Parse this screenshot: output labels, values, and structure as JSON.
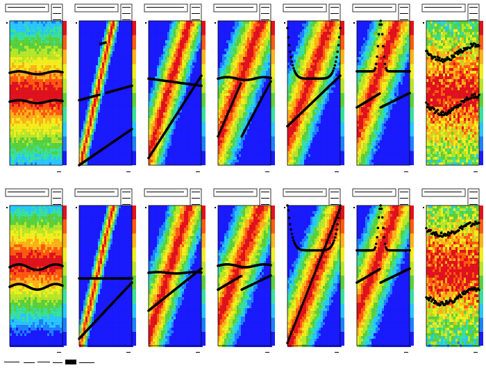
{
  "colors": {
    "colormap": [
      "#1a1aff",
      "#1f7fff",
      "#29c6ff",
      "#38e0a0",
      "#5ad13c",
      "#b8e62a",
      "#f2ee1e",
      "#ffb21a",
      "#ff5a12",
      "#e0121e"
    ],
    "marker": "#000000",
    "frame": "#000000"
  },
  "chart_data": [
    {
      "type": "heatmap",
      "panel": "top-1",
      "curves": [
        {
          "kind": "flat",
          "level": 0.64,
          "wobble": 0.01
        },
        {
          "kind": "flat",
          "level": 0.44,
          "wobble": 0.01
        }
      ],
      "band": {
        "kind": "horizontal",
        "center": 0.5,
        "width": 0.35
      }
    },
    {
      "type": "heatmap",
      "panel": "top-2",
      "curves": [
        {
          "kind": "diag",
          "from": 0.45,
          "to": 0.55,
          "spike": 0.35
        },
        {
          "kind": "diag",
          "from": 0.0,
          "to": 0.25,
          "split": 0.55
        }
      ],
      "band": {
        "kind": "diagonal",
        "offset": 0.0,
        "slope": 1.6,
        "width": 0.12
      }
    },
    {
      "type": "heatmap",
      "panel": "top-3",
      "curves": [
        {
          "kind": "line",
          "from": 0.6,
          "to": 0.55
        },
        {
          "kind": "line",
          "from": 0.05,
          "to": 0.62
        }
      ],
      "band": {
        "kind": "diagonal",
        "offset": 0.1,
        "slope": 1.2,
        "width": 0.25
      }
    },
    {
      "type": "heatmap",
      "panel": "top-4",
      "curves": [
        {
          "kind": "flat",
          "level": 0.6,
          "wobble": 0.01
        },
        {
          "kind": "sawtooth",
          "from": 0.2,
          "to": 0.58,
          "drop": 0.45
        }
      ],
      "band": {
        "kind": "diagonal",
        "offset": 0.2,
        "slope": 1.0,
        "width": 0.3
      }
    },
    {
      "type": "heatmap",
      "panel": "top-5",
      "curves": [
        {
          "kind": "bathtub",
          "level": 0.6
        },
        {
          "kind": "line",
          "from": 0.27,
          "to": 0.62
        }
      ],
      "band": {
        "kind": "diagonal",
        "offset": 0.2,
        "slope": 1.0,
        "width": 0.3
      }
    },
    {
      "type": "heatmap",
      "panel": "top-6",
      "curves": [
        {
          "kind": "peak",
          "level": 0.65,
          "top": 1.0
        },
        {
          "kind": "sawtooth",
          "from": 0.4,
          "to": 0.5,
          "drop": 0.2
        }
      ],
      "band": {
        "kind": "diagonal",
        "offset": 0.25,
        "slope": 1.0,
        "width": 0.3
      }
    },
    {
      "type": "heatmap",
      "panel": "top-7",
      "curves": [
        {
          "kind": "wave",
          "level": 0.78,
          "amp": 0.05
        },
        {
          "kind": "wave",
          "level": 0.42,
          "amp": 0.06
        }
      ],
      "band": {
        "kind": "noise",
        "center": 0.5,
        "width": 0.45
      }
    },
    {
      "type": "heatmap",
      "panel": "bottom-1",
      "curves": [
        {
          "kind": "flat",
          "level": 0.56,
          "wobble": 0.02
        },
        {
          "kind": "flat",
          "level": 0.42,
          "wobble": 0.02
        }
      ],
      "band": {
        "kind": "horizontal",
        "center": 0.4,
        "width": 0.3
      }
    },
    {
      "type": "heatmap",
      "panel": "bottom-2",
      "curves": [
        {
          "kind": "line",
          "from": 0.48,
          "to": 0.48
        },
        {
          "kind": "line",
          "from": 0.05,
          "to": 0.45
        }
      ],
      "band": {
        "kind": "diagonal",
        "offset": 0.0,
        "slope": 1.6,
        "width": 0.12
      }
    },
    {
      "type": "heatmap",
      "panel": "bottom-3",
      "curves": [
        {
          "kind": "flat",
          "level": 0.52,
          "wobble": 0.005
        },
        {
          "kind": "line",
          "from": 0.25,
          "to": 0.55
        }
      ],
      "band": {
        "kind": "diagonal",
        "offset": 0.1,
        "slope": 1.2,
        "width": 0.3
      }
    },
    {
      "type": "heatmap",
      "panel": "bottom-4",
      "curves": [
        {
          "kind": "flat",
          "level": 0.57,
          "wobble": 0.01
        },
        {
          "kind": "sawtooth",
          "from": 0.4,
          "to": 0.5,
          "drop": 0.3
        }
      ],
      "band": {
        "kind": "diagonal",
        "offset": 0.2,
        "slope": 1.0,
        "width": 0.3
      }
    },
    {
      "type": "heatmap",
      "panel": "bottom-5",
      "curves": [
        {
          "kind": "bathtub",
          "level": 0.68
        },
        {
          "kind": "line",
          "from": 0.02,
          "to": 0.98
        }
      ],
      "band": {
        "kind": "diagonal",
        "offset": 0.0,
        "slope": 1.0,
        "width": 0.3
      }
    },
    {
      "type": "heatmap",
      "panel": "bottom-6",
      "curves": [
        {
          "kind": "peak",
          "level": 0.68,
          "top": 1.0
        },
        {
          "kind": "sawtooth",
          "from": 0.45,
          "to": 0.55,
          "drop": 0.2
        }
      ],
      "band": {
        "kind": "diagonal",
        "offset": 0.25,
        "slope": 1.0,
        "width": 0.3
      }
    },
    {
      "type": "heatmap",
      "panel": "bottom-7",
      "curves": [
        {
          "kind": "wave",
          "level": 0.83,
          "amp": 0.04
        },
        {
          "kind": "wave",
          "level": 0.35,
          "amp": 0.05
        }
      ],
      "band": {
        "kind": "noise",
        "center": 0.45,
        "width": 0.45
      }
    }
  ]
}
